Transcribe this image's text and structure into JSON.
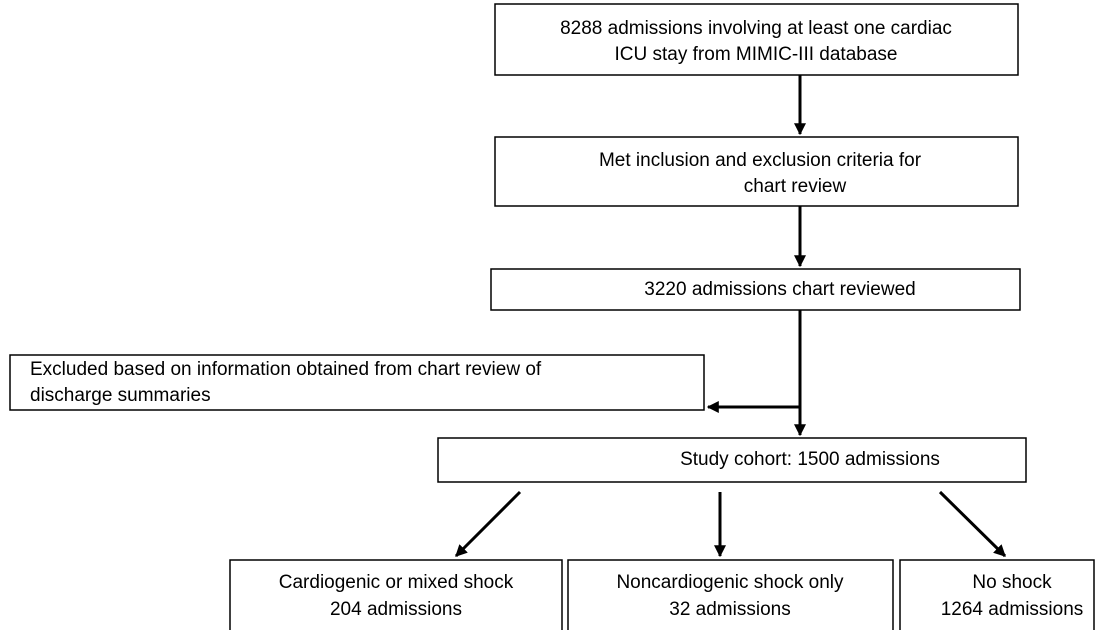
{
  "nodes": [
    {
      "lines": [
        "8288 admissions involving at least one cardiac",
        "ICU stay from MIMIC-III database"
      ]
    },
    {
      "lines": [
        "Met inclusion and exclusion criteria for",
        "chart review"
      ]
    },
    {
      "lines": [
        "3220 admissions chart reviewed"
      ]
    },
    {
      "lines": [
        "Excluded based on information obtained from chart review of",
        "discharge summaries"
      ]
    },
    {
      "lines": [
        "Study cohort: 1500 admissions"
      ]
    },
    {
      "lines": [
        "Cardiogenic or mixed shock",
        "204 admissions"
      ]
    },
    {
      "lines": [
        "Noncardiogenic shock only",
        "32 admissions"
      ]
    },
    {
      "lines": [
        "No shock",
        "1264 admissions"
      ]
    }
  ]
}
